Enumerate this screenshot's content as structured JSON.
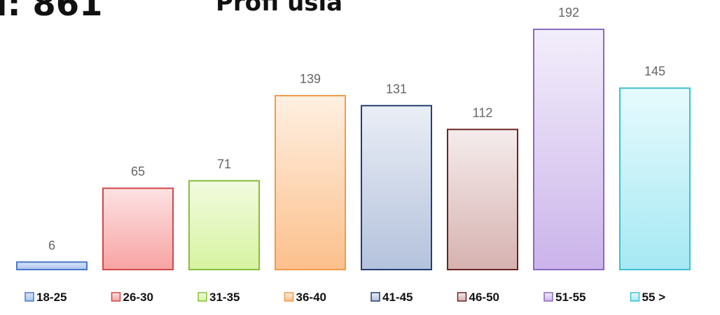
{
  "header": {
    "title_fragment": "l: 861",
    "subtitle_fragment": "Profi usia"
  },
  "chart_data": {
    "type": "bar",
    "categories": [
      "18-25",
      "26-30",
      "31-35",
      "36-40",
      "41-45",
      "46-50",
      "51-55",
      "55 >"
    ],
    "values": [
      6,
      65,
      71,
      139,
      131,
      112,
      192,
      145
    ],
    "ylim": [
      0,
      192
    ],
    "grid": false,
    "legend_position": "bottom",
    "colors": [
      {
        "top": "#dbe6f8",
        "bottom": "#a8c3ee",
        "stroke": "#4a78c8"
      },
      {
        "top": "#fde2e2",
        "bottom": "#f7a3a3",
        "stroke": "#d04848"
      },
      {
        "top": "#f2fbdf",
        "bottom": "#d6f3a0",
        "stroke": "#86c03a"
      },
      {
        "top": "#fff0e2",
        "bottom": "#fcc08c",
        "stroke": "#f29a48"
      },
      {
        "top": "#eaeef6",
        "bottom": "#b4c2dc",
        "stroke": "#243f70"
      },
      {
        "top": "#f5ecec",
        "bottom": "#d6b2b0",
        "stroke": "#6a2424"
      },
      {
        "top": "#f3eefb",
        "bottom": "#cbb4ea",
        "stroke": "#8a6ac0"
      },
      {
        "top": "#e6fbfd",
        "bottom": "#a6e8f3",
        "stroke": "#3cc0d2"
      }
    ]
  }
}
